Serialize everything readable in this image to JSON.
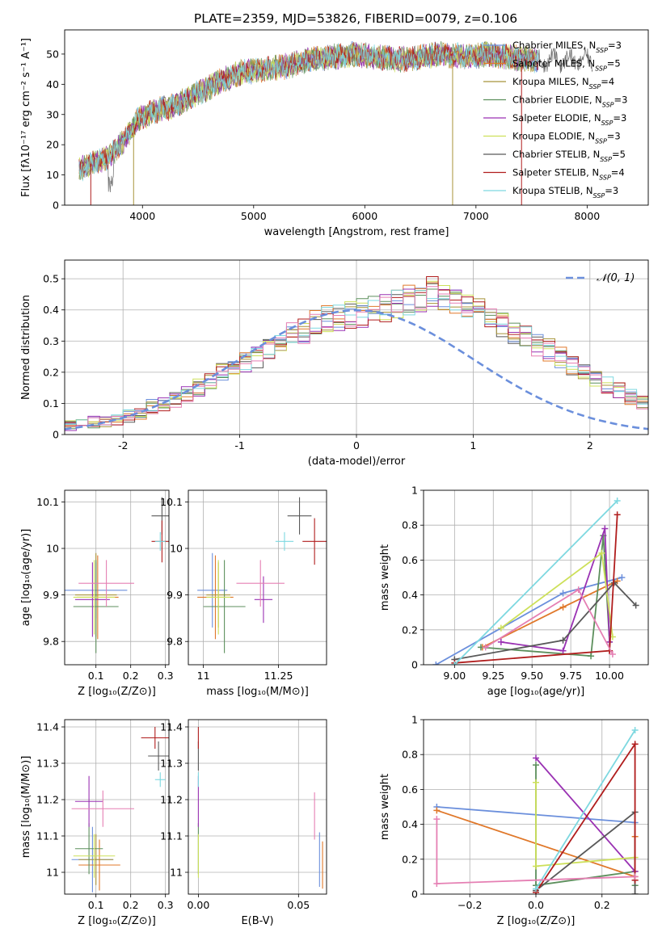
{
  "figure": {
    "title": "PLATE=2359, MJD=53826, FIBERID=0079, z=0.106",
    "colors": [
      "#6b8fdc",
      "#e0782a",
      "#a8943a",
      "#5c8f5c",
      "#9a32b3",
      "#cde05a",
      "#595959",
      "#b01d1d",
      "#7dd8e0",
      "#e57fb3"
    ]
  },
  "chart_data": [
    {
      "type": "line",
      "title": "PLATE=2359, MJD=53826, FIBERID=0079, z=0.106",
      "xlabel": "wavelength [Angstrom, rest frame]",
      "ylabel": "Flux [fλ10⁻¹⁷ erg cm⁻² s⁻¹ A⁻¹]",
      "xlim": [
        3300,
        8550
      ],
      "ylim": [
        0,
        58
      ],
      "xticks": [
        4000,
        5000,
        6000,
        7000,
        8000
      ],
      "yticks": [
        0,
        10,
        20,
        30,
        40,
        50
      ],
      "legend_position": "top-right",
      "grid": false,
      "data_trend_x": [
        3450,
        3550,
        3700,
        3850,
        3950,
        4100,
        4300,
        4500,
        4700,
        4900,
        5100,
        5300,
        5500,
        5700,
        5900,
        6100,
        6300,
        6500,
        6700,
        6900,
        7100,
        7300,
        7500
      ],
      "data_trend_y": [
        12,
        14,
        16,
        22,
        28,
        31,
        33,
        37,
        41,
        44,
        45,
        46,
        48,
        49,
        50,
        49,
        48,
        49,
        50,
        49,
        50,
        49,
        48
      ],
      "series": [
        {
          "name": "Chabrier MILES, N",
          "sub": "SSP",
          "suffix": "=3"
        },
        {
          "name": "Salpeter MILES, N",
          "sub": "SSP",
          "suffix": "=5"
        },
        {
          "name": "Kroupa MILES, N",
          "sub": "SSP",
          "suffix": "=4"
        },
        {
          "name": "Chabrier ELODIE, N",
          "sub": "SSP",
          "suffix": "=3"
        },
        {
          "name": "Salpeter ELODIE, N",
          "sub": "SSP",
          "suffix": "=3"
        },
        {
          "name": "Kroupa ELODIE, N",
          "sub": "SSP",
          "suffix": "=3"
        },
        {
          "name": "Chabrier STELIB, N",
          "sub": "SSP",
          "suffix": "=5"
        },
        {
          "name": "Salpeter STELIB, N",
          "sub": "SSP",
          "suffix": "=4"
        },
        {
          "name": "Kroupa STELIB, N",
          "sub": "SSP",
          "suffix": "=3"
        }
      ]
    },
    {
      "type": "histogram",
      "xlabel": "(data-model)/error",
      "ylabel": "Normed distribution",
      "xlim": [
        -2.5,
        2.5
      ],
      "ylim": [
        0,
        0.56
      ],
      "xticks": [
        -2,
        -1,
        0,
        1,
        2
      ],
      "yticks": [
        0.0,
        0.1,
        0.2,
        0.3,
        0.4,
        0.5
      ],
      "grid": true,
      "legend": "𝒩(0, 1)",
      "legend_position": "top-right",
      "bin_width": 0.1,
      "bin_start": -2.5,
      "envelope": [
        0.03,
        0.03,
        0.04,
        0.04,
        0.05,
        0.06,
        0.07,
        0.09,
        0.1,
        0.11,
        0.13,
        0.15,
        0.17,
        0.2,
        0.22,
        0.23,
        0.25,
        0.27,
        0.3,
        0.32,
        0.33,
        0.36,
        0.37,
        0.38,
        0.38,
        0.39,
        0.4,
        0.41,
        0.42,
        0.43,
        0.44,
        0.46,
        0.45,
        0.42,
        0.41,
        0.4,
        0.38,
        0.35,
        0.33,
        0.31,
        0.29,
        0.27,
        0.25,
        0.22,
        0.2,
        0.18,
        0.16,
        0.14,
        0.12,
        0.1,
        0.09,
        0.08,
        0.07,
        0.06,
        0.05,
        0.05,
        0.04,
        0.04,
        0.03,
        0.03
      ],
      "normal_curve": {
        "mean": 0,
        "sigma": 1
      }
    },
    {
      "type": "errorbar",
      "xlabel": "Z [log₁₀(Z/Z⊙)]",
      "ylabel": "age  [log₁₀(age/yr)]",
      "xlim": [
        0.01,
        0.31
      ],
      "ylim": [
        9.75,
        10.125
      ],
      "xticks": [
        0.1,
        0.2,
        0.3
      ],
      "yticks": [
        9.8,
        9.9,
        10.0,
        10.1
      ],
      "grid": true,
      "points": [
        {
          "c": 0,
          "x": 0.1,
          "y": 9.91,
          "xe": 0.09,
          "ye": 0.06
        },
        {
          "c": 1,
          "x": 0.105,
          "y": 9.895,
          "xe": 0.06,
          "ye": 0.09
        },
        {
          "c": 2,
          "x": 0.1,
          "y": 9.9,
          "xe": 0.06,
          "ye": 0.09
        },
        {
          "c": 3,
          "x": 0.1,
          "y": 9.875,
          "xe": 0.065,
          "ye": 0.1
        },
        {
          "c": 4,
          "x": 0.09,
          "y": 9.89,
          "xe": 0.05,
          "ye": 0.08
        },
        {
          "c": 5,
          "x": 0.095,
          "y": 9.895,
          "xe": 0.06,
          "ye": 0.08
        },
        {
          "c": 6,
          "x": 0.29,
          "y": 10.07,
          "xe": 0.03,
          "ye": 0.04
        },
        {
          "c": 7,
          "x": 0.29,
          "y": 10.015,
          "xe": 0.03,
          "ye": 0.045
        },
        {
          "c": 8,
          "x": 0.285,
          "y": 10.015,
          "xe": 0.015,
          "ye": 0.02
        },
        {
          "c": 9,
          "x": 0.13,
          "y": 9.925,
          "xe": 0.08,
          "ye": 0.05
        }
      ]
    },
    {
      "type": "errorbar",
      "xlabel": "mass [log₁₀(M/M⊙)]",
      "ylabel": "",
      "xlim": [
        10.95,
        11.41
      ],
      "ylim": [
        9.75,
        10.125
      ],
      "xticks": [
        11.0,
        11.25
      ],
      "yticks": [
        9.8,
        9.9,
        10.0,
        10.1
      ],
      "grid": true,
      "points": [
        {
          "c": 0,
          "x": 11.03,
          "y": 9.91,
          "xe": 0.05,
          "ye": 0.08
        },
        {
          "c": 1,
          "x": 11.04,
          "y": 9.895,
          "xe": 0.06,
          "ye": 0.09
        },
        {
          "c": 2,
          "x": 11.05,
          "y": 9.9,
          "xe": 0.04,
          "ye": 0.07
        },
        {
          "c": 3,
          "x": 11.07,
          "y": 9.875,
          "xe": 0.07,
          "ye": 0.1
        },
        {
          "c": 4,
          "x": 11.2,
          "y": 9.89,
          "xe": 0.03,
          "ye": 0.05
        },
        {
          "c": 5,
          "x": 11.05,
          "y": 9.895,
          "xe": 0.04,
          "ye": 0.08
        },
        {
          "c": 6,
          "x": 11.32,
          "y": 10.07,
          "xe": 0.04,
          "ye": 0.04
        },
        {
          "c": 7,
          "x": 11.37,
          "y": 10.015,
          "xe": 0.04,
          "ye": 0.05
        },
        {
          "c": 8,
          "x": 11.27,
          "y": 10.015,
          "xe": 0.03,
          "ye": 0.02
        },
        {
          "c": 9,
          "x": 11.19,
          "y": 9.925,
          "xe": 0.08,
          "ye": 0.05
        }
      ]
    },
    {
      "type": "line",
      "xlabel": "age  [log₁₀(age/yr)]",
      "ylabel": "mass weight",
      "xlim": [
        8.8,
        10.25
      ],
      "ylim": [
        0,
        1.0
      ],
      "xticks": [
        9.0,
        9.25,
        9.5,
        9.75,
        10.0
      ],
      "xtick_labels": [
        "9.00",
        "9.25",
        "9.50",
        "9.75",
        "10.00"
      ],
      "yticks": [
        0.0,
        0.2,
        0.4,
        0.6,
        0.8,
        1.0
      ],
      "grid": true,
      "series": [
        {
          "c": 0,
          "x": [
            8.88,
            9.7,
            10.08
          ],
          "y": [
            0.0,
            0.41,
            0.5
          ]
        },
        {
          "c": 1,
          "x": [
            9.18,
            9.7,
            10.05
          ],
          "y": [
            0.1,
            0.33,
            0.48
          ]
        },
        {
          "c": 3,
          "x": [
            9.17,
            9.88,
            9.96,
            10.0
          ],
          "y": [
            0.1,
            0.05,
            0.74,
            0.13
          ]
        },
        {
          "c": 4,
          "x": [
            9.3,
            9.7,
            9.97,
            10.0
          ],
          "y": [
            0.13,
            0.08,
            0.78,
            0.13
          ]
        },
        {
          "c": 5,
          "x": [
            9.3,
            9.95,
            10.02
          ],
          "y": [
            0.21,
            0.64,
            0.16
          ]
        },
        {
          "c": 6,
          "x": [
            9.0,
            9.7,
            10.03,
            10.17
          ],
          "y": [
            0.03,
            0.14,
            0.47,
            0.34
          ]
        },
        {
          "c": 7,
          "x": [
            9.0,
            10.0,
            10.05,
            10.0
          ],
          "y": [
            0.01,
            0.08,
            0.86,
            0.08
          ]
        },
        {
          "c": 8,
          "x": [
            9.0,
            10.05
          ],
          "y": [
            0.0,
            0.94
          ]
        },
        {
          "c": 9,
          "x": [
            9.2,
            9.8,
            10.02
          ],
          "y": [
            0.1,
            0.43,
            0.06
          ]
        }
      ]
    },
    {
      "type": "errorbar",
      "xlabel": "Z [log₁₀(Z/Z⊙)]",
      "ylabel": "mass [log₁₀(M/M⊙)]",
      "xlim": [
        0.01,
        0.31
      ],
      "ylim": [
        10.94,
        11.42
      ],
      "xticks": [
        0.1,
        0.2,
        0.3
      ],
      "yticks": [
        11.0,
        11.1,
        11.2,
        11.3,
        11.4
      ],
      "grid": true,
      "points": [
        {
          "c": 0,
          "x": 0.09,
          "y": 11.035,
          "xe": 0.06,
          "ye": 0.09
        },
        {
          "c": 1,
          "x": 0.11,
          "y": 11.02,
          "xe": 0.06,
          "ye": 0.07
        },
        {
          "c": 2,
          "x": 0.1,
          "y": 11.035,
          "xe": 0.05,
          "ye": 0.07
        },
        {
          "c": 3,
          "x": 0.08,
          "y": 11.065,
          "xe": 0.04,
          "ye": 0.07
        },
        {
          "c": 4,
          "x": 0.08,
          "y": 11.195,
          "xe": 0.04,
          "ye": 0.07
        },
        {
          "c": 5,
          "x": 0.095,
          "y": 11.045,
          "xe": 0.06,
          "ye": 0.06
        },
        {
          "c": 6,
          "x": 0.28,
          "y": 11.32,
          "xe": 0.03,
          "ye": 0.04
        },
        {
          "c": 7,
          "x": 0.27,
          "y": 11.37,
          "xe": 0.04,
          "ye": 0.03
        },
        {
          "c": 8,
          "x": 0.285,
          "y": 11.255,
          "xe": 0.015,
          "ye": 0.02
        },
        {
          "c": 9,
          "x": 0.12,
          "y": 11.175,
          "xe": 0.09,
          "ye": 0.05
        }
      ]
    },
    {
      "type": "errorbar",
      "xlabel": "E(B-V)",
      "ylabel": "",
      "xlim": [
        -0.005,
        0.064
      ],
      "ylim": [
        10.94,
        11.42
      ],
      "xticks": [
        0.0,
        0.05
      ],
      "xtick_labels": [
        "0.00",
        "0.05"
      ],
      "yticks": [
        11.0,
        11.1,
        11.2,
        11.3,
        11.4
      ],
      "grid": true,
      "points": [
        {
          "c": 0,
          "x": 0.0605,
          "y": 11.035,
          "xe": 0,
          "ye": 0.075
        },
        {
          "c": 1,
          "x": 0.062,
          "y": 11.02,
          "xe": 0,
          "ye": 0.065
        },
        {
          "c": 3,
          "x": 0.0,
          "y": 11.065,
          "xe": 0,
          "ye": 0.07
        },
        {
          "c": 4,
          "x": 0.0,
          "y": 11.195,
          "xe": 0,
          "ye": 0.07
        },
        {
          "c": 5,
          "x": 0.0,
          "y": 11.045,
          "xe": 0,
          "ye": 0.06
        },
        {
          "c": 6,
          "x": 0.0,
          "y": 11.32,
          "xe": 0,
          "ye": 0.04
        },
        {
          "c": 7,
          "x": 0.0,
          "y": 11.37,
          "xe": 0,
          "ye": 0.03
        },
        {
          "c": 8,
          "x": 0.0,
          "y": 11.255,
          "xe": 0,
          "ye": 0.02
        },
        {
          "c": 9,
          "x": 0.058,
          "y": 11.155,
          "xe": 0,
          "ye": 0.065
        }
      ]
    },
    {
      "type": "line",
      "xlabel": "Z [log₁₀(Z/Z⊙)]",
      "ylabel": "mass weight",
      "xlim": [
        -0.34,
        0.34
      ],
      "ylim": [
        0,
        1.0
      ],
      "xticks": [
        -0.2,
        0.0,
        0.2
      ],
      "xtick_labels": [
        "−0.2",
        "0.0",
        "0.2"
      ],
      "yticks": [
        0.0,
        0.2,
        0.4,
        0.6,
        0.8,
        1.0
      ],
      "grid": true,
      "series": [
        {
          "c": 0,
          "x": [
            -0.3,
            0.3
          ],
          "y": [
            0.5,
            0.41
          ]
        },
        {
          "c": 1,
          "x": [
            -0.3,
            0.3,
            0.3
          ],
          "y": [
            0.48,
            0.1,
            0.33
          ]
        },
        {
          "c": 3,
          "x": [
            0.0,
            0.0,
            0.3,
            0.3
          ],
          "y": [
            0.74,
            0.05,
            0.13,
            0.05
          ]
        },
        {
          "c": 4,
          "x": [
            0.0,
            0.3,
            0.3
          ],
          "y": [
            0.78,
            0.13,
            0.08
          ]
        },
        {
          "c": 5,
          "x": [
            0.0,
            0.0,
            0.3
          ],
          "y": [
            0.64,
            0.16,
            0.21
          ]
        },
        {
          "c": 6,
          "x": [
            0.0,
            0.3,
            0.3
          ],
          "y": [
            0.02,
            0.47,
            0.0
          ]
        },
        {
          "c": 7,
          "x": [
            0.0,
            0.3,
            0.3
          ],
          "y": [
            0.01,
            0.86,
            0.08
          ]
        },
        {
          "c": 8,
          "x": [
            0.0,
            0.3
          ],
          "y": [
            0.03,
            0.94
          ]
        },
        {
          "c": 9,
          "x": [
            -0.3,
            -0.3,
            0.3
          ],
          "y": [
            0.43,
            0.06,
            0.1
          ]
        }
      ]
    }
  ]
}
